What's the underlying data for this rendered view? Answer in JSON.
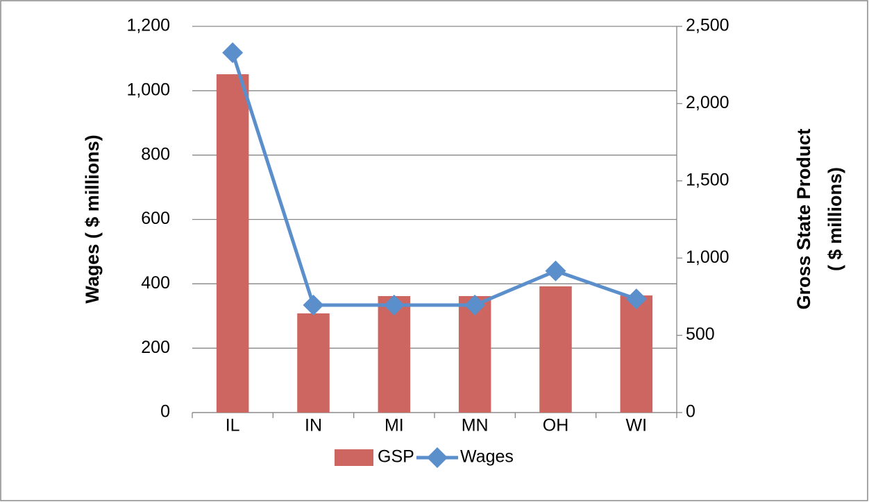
{
  "chart_data": {
    "type": "bar-line",
    "categories": [
      "IL",
      "IN",
      "MI",
      "MN",
      "OH",
      "WI"
    ],
    "ylabel": "Wages ( $ millions)",
    "y2label": [
      "Gross State Product",
      "( $ millions)"
    ],
    "ylim": [
      0,
      1200
    ],
    "yticks": [
      0,
      200,
      400,
      600,
      800,
      {
        "value": 1000,
        "label": "1,000"
      },
      {
        "value": 1200,
        "label": "1,200"
      }
    ],
    "y2lim": [
      0,
      2500
    ],
    "y2ticks": [
      0,
      500,
      {
        "value": 1000,
        "label": "1,000"
      },
      {
        "value": 1500,
        "label": "1,500"
      },
      {
        "value": 2000,
        "label": "2,000"
      },
      {
        "value": 2500,
        "label": "2,500"
      }
    ],
    "grid": true,
    "legend": "bottom",
    "series": [
      {
        "name": "GSP",
        "type": "bar",
        "axis": "y2",
        "color": "#cd6660",
        "values": [
          2190,
          642,
          754,
          754,
          817,
          758
        ]
      },
      {
        "name": "Wages",
        "type": "line",
        "axis": "y",
        "color": "#5b8fcc",
        "values": [
          1118,
          334,
          334,
          334,
          440,
          353
        ]
      }
    ]
  }
}
